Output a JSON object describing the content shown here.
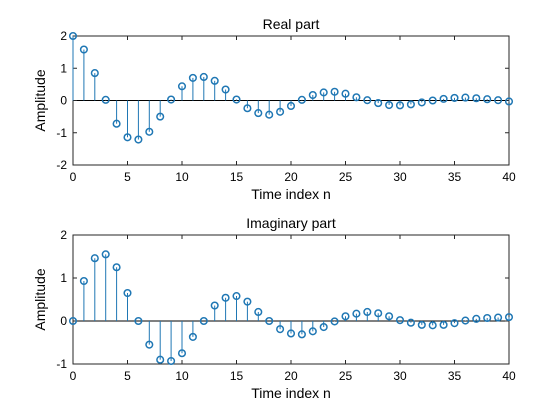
{
  "colors": {
    "stem": "#1f77b4",
    "axes": "#262626",
    "background": "#ffffff"
  },
  "chart_data": [
    {
      "type": "stem",
      "title": "Real part",
      "xlabel": "Time index n",
      "ylabel": "Amplitude",
      "xlim": [
        0,
        40
      ],
      "ylim": [
        -2,
        2
      ],
      "xticks": [
        0,
        5,
        10,
        15,
        20,
        25,
        30,
        35,
        40
      ],
      "yticks": [
        -2,
        -1,
        0,
        1,
        2
      ],
      "xtick_labels": [
        "0",
        "5",
        "10",
        "15",
        "20",
        "25",
        "30",
        "35",
        "40"
      ],
      "ytick_labels": [
        "-2",
        "-1",
        "0",
        "1",
        "2"
      ],
      "x": [
        0,
        1,
        2,
        3,
        4,
        5,
        6,
        7,
        8,
        9,
        10,
        11,
        12,
        13,
        14,
        15,
        16,
        17,
        18,
        19,
        20,
        21,
        22,
        23,
        24,
        25,
        26,
        27,
        28,
        29,
        30,
        31,
        32,
        33,
        34,
        35,
        36,
        37,
        38,
        39,
        40
      ],
      "values": [
        2.0,
        1.58,
        0.85,
        0.02,
        -0.72,
        -1.14,
        -1.21,
        -0.97,
        -0.5,
        0.03,
        0.44,
        0.7,
        0.73,
        0.61,
        0.34,
        0.03,
        -0.24,
        -0.39,
        -0.44,
        -0.35,
        -0.17,
        0.02,
        0.17,
        0.25,
        0.27,
        0.21,
        0.1,
        0.01,
        -0.08,
        -0.14,
        -0.15,
        -0.12,
        -0.06,
        0.0,
        0.05,
        0.08,
        0.09,
        0.07,
        0.04,
        0.01,
        -0.03
      ]
    },
    {
      "type": "stem",
      "title": "Imaginary part",
      "xlabel": "Time index n",
      "ylabel": "Amplitude",
      "xlim": [
        0,
        40
      ],
      "ylim": [
        -1,
        2
      ],
      "xticks": [
        0,
        5,
        10,
        15,
        20,
        25,
        30,
        35,
        40
      ],
      "yticks": [
        -1,
        0,
        1,
        2
      ],
      "xtick_labels": [
        "0",
        "5",
        "10",
        "15",
        "20",
        "25",
        "30",
        "35",
        "40"
      ],
      "ytick_labels": [
        "-1",
        "0",
        "1",
        "2"
      ],
      "x": [
        0,
        1,
        2,
        3,
        4,
        5,
        6,
        7,
        8,
        9,
        10,
        11,
        12,
        13,
        14,
        15,
        16,
        17,
        18,
        19,
        20,
        21,
        22,
        23,
        24,
        25,
        26,
        27,
        28,
        29,
        30,
        31,
        32,
        33,
        34,
        35,
        36,
        37,
        38,
        39,
        40
      ],
      "values": [
        0.0,
        0.93,
        1.46,
        1.55,
        1.25,
        0.65,
        0.0,
        -0.55,
        -0.9,
        -0.93,
        -0.75,
        -0.37,
        0.0,
        0.36,
        0.54,
        0.58,
        0.45,
        0.21,
        0.0,
        -0.19,
        -0.29,
        -0.31,
        -0.24,
        -0.14,
        -0.01,
        0.11,
        0.17,
        0.21,
        0.18,
        0.11,
        0.02,
        -0.04,
        -0.09,
        -0.1,
        -0.09,
        -0.05,
        0.01,
        0.05,
        0.07,
        0.08,
        0.09
      ]
    }
  ]
}
